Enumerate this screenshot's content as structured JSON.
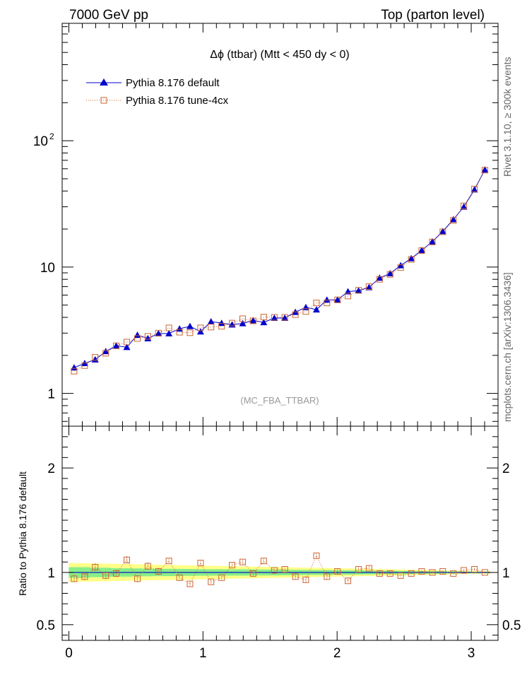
{
  "header": {
    "left": "7000 GeV pp",
    "right": "Top (parton level)"
  },
  "side": {
    "rivet": "Rivet 3.1.10, ≥ 300k events",
    "mcplots": "mcplots.cern.ch [arXiv:1306.3436]"
  },
  "chart_data": [
    {
      "type": "line",
      "title": "Δϕ (ttbar) (Mtt < 450 dy < 0)",
      "watermark": "(MC_FBA_TTBAR)",
      "xlim": [
        -0.05,
        3.2
      ],
      "ylim": [
        0.55,
        850
      ],
      "yscale": "log",
      "yticks": [
        {
          "v": 1,
          "label": "1"
        },
        {
          "v": 10,
          "label": "10"
        },
        {
          "v": 100,
          "label": "10",
          "sup": "2"
        }
      ],
      "legend_position": "top-left",
      "x": [
        0.039,
        0.118,
        0.196,
        0.275,
        0.353,
        0.432,
        0.511,
        0.589,
        0.668,
        0.746,
        0.825,
        0.903,
        0.982,
        1.06,
        1.139,
        1.217,
        1.296,
        1.374,
        1.453,
        1.532,
        1.61,
        1.689,
        1.767,
        1.846,
        1.924,
        2.003,
        2.081,
        2.16,
        2.238,
        2.317,
        2.395,
        2.474,
        2.553,
        2.631,
        2.71,
        2.788,
        2.867,
        2.945,
        3.024,
        3.102
      ],
      "series": [
        {
          "name": "Pythia 8.176 default",
          "color": "#0000cc",
          "marker": "triangle",
          "values": [
            1.6,
            1.73,
            1.85,
            2.15,
            2.38,
            2.32,
            2.9,
            2.72,
            2.98,
            2.98,
            3.25,
            3.4,
            3.08,
            3.7,
            3.6,
            3.5,
            3.58,
            3.78,
            3.65,
            3.95,
            3.95,
            4.4,
            4.8,
            4.6,
            5.5,
            5.5,
            6.4,
            6.5,
            6.9,
            8.2,
            8.9,
            10.3,
            11.7,
            13.6,
            15.9,
            19.2,
            23.8,
            30.0,
            41.0,
            59.0
          ]
        },
        {
          "name": "Pythia 8.176 tune-4cx",
          "color": "#cc6633",
          "marker": "open-square",
          "values": [
            1.5,
            1.66,
            1.93,
            2.08,
            2.38,
            2.55,
            2.72,
            2.83,
            3.0,
            3.3,
            3.05,
            3.02,
            3.3,
            3.35,
            3.4,
            3.6,
            3.9,
            3.75,
            4.02,
            4.0,
            4.0,
            4.2,
            4.45,
            5.2,
            5.2,
            5.5,
            5.9,
            6.55,
            7.0,
            8.0,
            8.75,
            9.9,
            11.5,
            13.5,
            15.8,
            19.0,
            23.4,
            30.5,
            41.5,
            58.5
          ]
        }
      ]
    },
    {
      "type": "line",
      "ylabel": "Ratio to Pythia 8.176 default",
      "xlim": [
        -0.05,
        3.2
      ],
      "ylim": [
        0.35,
        2.4
      ],
      "yticks": [
        {
          "v": 0.5,
          "label": "0.5"
        },
        {
          "v": 1,
          "label": "1"
        },
        {
          "v": 2,
          "label": "2"
        }
      ],
      "xticks": [
        {
          "v": 0,
          "label": "0"
        },
        {
          "v": 1,
          "label": "1"
        },
        {
          "v": 2,
          "label": "2"
        },
        {
          "v": 3,
          "label": "3"
        }
      ],
      "band_inner_color": "#88ee88",
      "band_outer_color": "#ffff88",
      "reference_color": "#0000cc",
      "band_stat_rel": [
        0.05,
        0.05,
        0.045,
        0.045,
        0.04,
        0.04,
        0.038,
        0.037,
        0.035,
        0.035,
        0.034,
        0.033,
        0.032,
        0.031,
        0.031,
        0.03,
        0.03,
        0.029,
        0.028,
        0.028,
        0.027,
        0.026,
        0.025,
        0.024,
        0.023,
        0.022,
        0.021,
        0.02,
        0.019,
        0.018,
        0.016,
        0.015,
        0.014,
        0.013,
        0.012,
        0.011,
        0.01,
        0.009,
        0.008,
        0.007
      ],
      "band_total_rel": [
        0.09,
        0.088,
        0.086,
        0.084,
        0.082,
        0.08,
        0.078,
        0.076,
        0.074,
        0.072,
        0.07,
        0.068,
        0.066,
        0.064,
        0.062,
        0.06,
        0.058,
        0.056,
        0.054,
        0.052,
        0.05,
        0.048,
        0.046,
        0.044,
        0.042,
        0.04,
        0.038,
        0.036,
        0.034,
        0.032,
        0.03,
        0.028,
        0.026,
        0.024,
        0.022,
        0.02,
        0.018,
        0.016,
        0.014,
        0.012
      ],
      "ratio_values": [
        0.94,
        0.96,
        1.05,
        0.97,
        0.99,
        1.12,
        0.94,
        1.06,
        1.01,
        1.11,
        0.95,
        0.89,
        1.09,
        0.91,
        0.95,
        1.07,
        1.1,
        0.99,
        1.11,
        1.02,
        1.03,
        0.96,
        0.93,
        1.16,
        0.96,
        1.01,
        0.92,
        1.03,
        1.04,
        0.99,
        0.99,
        0.97,
        0.99,
        1.01,
        1.0,
        1.01,
        0.99,
        1.02,
        1.03,
        1.0
      ],
      "ratio_err": [
        0.04,
        0.04,
        0.04,
        0.04,
        0.035,
        0.035,
        0.035,
        0.035,
        0.035,
        0.03,
        0.03,
        0.03,
        0.03,
        0.03,
        0.03,
        0.03,
        0.03,
        0.03,
        0.03,
        0.03,
        0.03,
        0.025,
        0.025,
        0.025,
        0.025,
        0.025,
        0.02,
        0.02,
        0.02,
        0.02,
        0.02,
        0.015,
        0.015,
        0.015,
        0.015,
        0.012,
        0.012,
        0.01,
        0.01,
        0.01
      ]
    }
  ]
}
